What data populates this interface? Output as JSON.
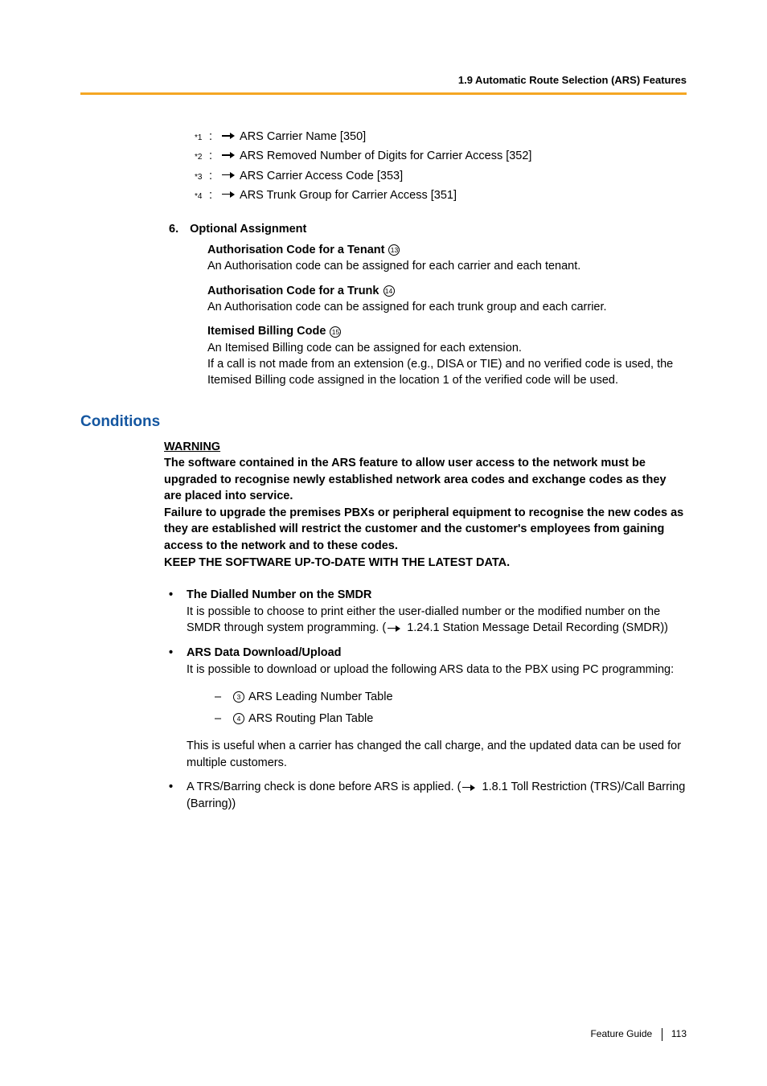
{
  "header": {
    "section_title": "1.9 Automatic Route Selection (ARS) Features",
    "rule_color": "#f5a623"
  },
  "footnotes": [
    {
      "sup": "*1",
      "text": "ARS Carrier Name [350]"
    },
    {
      "sup": "*2",
      "text": "ARS Removed Number of Digits for Carrier Access [352]"
    },
    {
      "sup": "*3",
      "text": "ARS Carrier Access Code [353]"
    },
    {
      "sup": "*4",
      "text": "ARS Trunk Group for Carrier Access [351]"
    }
  ],
  "section6": {
    "number": "6.",
    "title": "Optional Assignment",
    "items": [
      {
        "title": "Authorisation Code for a Tenant",
        "circled": "13",
        "body": "An Authorisation code can be assigned for each carrier and each tenant."
      },
      {
        "title": "Authorisation Code for a Trunk",
        "circled": "14",
        "body": "An Authorisation code can be assigned for each trunk group and each carrier."
      },
      {
        "title": "Itemised Billing Code",
        "circled": "15",
        "body": "An Itemised Billing code can be assigned for each extension.",
        "body2": "If a call is not made from an extension (e.g., DISA or TIE) and no verified code is used, the Itemised Billing code assigned in the location 1 of the verified code will be used."
      }
    ]
  },
  "conditions": {
    "heading": "Conditions",
    "warning_title": "WARNING",
    "warning_body1": "The software contained in the ARS feature to allow user access to the network must be upgraded to recognise newly established network area codes and exchange codes as they are placed into service.",
    "warning_body2": "Failure to upgrade the premises PBXs or peripheral equipment to recognise the new codes as they are established will restrict the customer and the customer's employees from gaining access to the network and to these codes.",
    "warning_body3": "KEEP THE SOFTWARE UP-TO-DATE WITH THE LATEST DATA.",
    "bullets": [
      {
        "title": "The Dialled Number on the SMDR",
        "body_pre": "It is possible to choose to print either the user-dialled number or the modified number on the SMDR through system programming. (",
        "ref": "1.24.1 Station Message Detail Recording (SMDR))"
      },
      {
        "title": "ARS Data Download/Upload",
        "body": "It is possible to download or upload the following ARS data to the PBX using PC programming:",
        "dashes": [
          {
            "circled": "3",
            "text": "ARS Leading Number Table"
          },
          {
            "circled": "4",
            "text": "ARS Routing Plan Table"
          }
        ],
        "after": "This is useful when a carrier has changed the call charge, and the updated data can be used for multiple customers."
      },
      {
        "body_pre": "A TRS/Barring check is done before ARS is applied. (",
        "ref": "1.8.1 Toll Restriction (TRS)/Call Barring (Barring))"
      }
    ]
  },
  "footer": {
    "label": "Feature Guide",
    "page": "113"
  }
}
